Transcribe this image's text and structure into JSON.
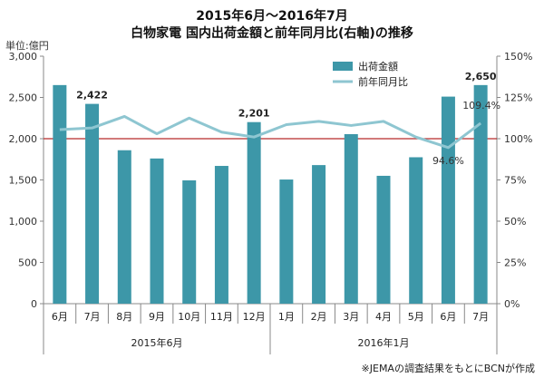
{
  "header": {
    "title_line1": "2015年6月～2016年7月",
    "title_line2": "白物家電 国内出荷金額と前年同月比(右軸)の推移",
    "unit_label": "単位:億円"
  },
  "footer": {
    "source": "※JEMAの調査結果をもとにBCNが作成"
  },
  "colors": {
    "bar": "#3d97a8",
    "line": "#8ec6d1",
    "reference_line": "#b72a2a",
    "axis": "#888888"
  },
  "chart_data": {
    "type": "bar+line",
    "title": "白物家電 国内出荷金額と前年同月比(右軸)の推移",
    "categories": [
      "6月",
      "7月",
      "8月",
      "9月",
      "10月",
      "11月",
      "12月",
      "1月",
      "2月",
      "3月",
      "4月",
      "5月",
      "6月",
      "7月"
    ],
    "groups": [
      {
        "label": "2015年6月",
        "start": 0,
        "end": 6
      },
      {
        "label": "2016年1月",
        "start": 7,
        "end": 13
      }
    ],
    "series": [
      {
        "name": "出荷金額",
        "type": "bar",
        "axis": "left",
        "values": [
          2650,
          2422,
          1860,
          1760,
          1495,
          1670,
          2201,
          1505,
          1680,
          2055,
          1550,
          1775,
          2510,
          2650
        ]
      },
      {
        "name": "前年同月比",
        "type": "line",
        "axis": "right",
        "values": [
          105.5,
          106.5,
          113.5,
          103,
          112.5,
          104,
          101,
          108.5,
          110.5,
          108,
          110.5,
          101,
          94.6,
          109.4
        ]
      }
    ],
    "bar_labels": [
      {
        "index": 1,
        "text": "2,422"
      },
      {
        "index": 6,
        "text": "2,201"
      },
      {
        "index": 13,
        "text": "2,650"
      }
    ],
    "line_labels": [
      {
        "index": 12,
        "text": "94.6%"
      },
      {
        "index": 13,
        "text": "109.4%"
      }
    ],
    "left_axis": {
      "ylim": [
        0,
        3000
      ],
      "ticks": [
        "0",
        "500",
        "1,000",
        "1,500",
        "2,000",
        "2,500",
        "3,000"
      ]
    },
    "right_axis": {
      "ylim": [
        0,
        150
      ],
      "ticks": [
        "0%",
        "25%",
        "50%",
        "75%",
        "100%",
        "125%",
        "150%"
      ]
    },
    "reference_line_value": 100,
    "legend_position": "top-right",
    "grid": false
  }
}
